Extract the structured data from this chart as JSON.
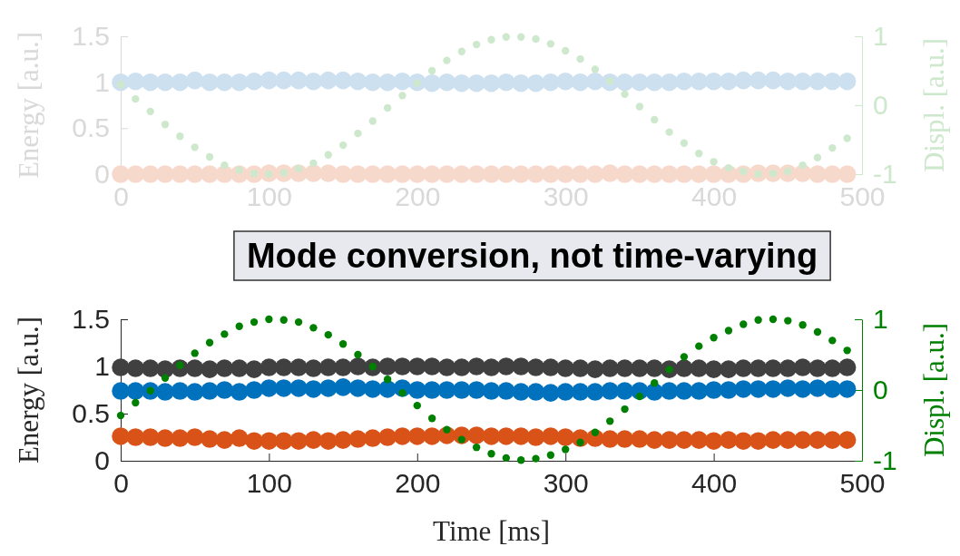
{
  "chart_data": [
    {
      "type": "scatter",
      "ylabel": "Energy [a.u.]",
      "y2label": "Displ. [a.u.]",
      "marker": "circle",
      "grid": false,
      "annotations": [
        "Mode conversion, not time-varying"
      ],
      "x": [
        0,
        10,
        20,
        30,
        40,
        50,
        60,
        70,
        80,
        90,
        100,
        110,
        120,
        130,
        140,
        150,
        160,
        170,
        180,
        190,
        200,
        210,
        220,
        230,
        240,
        250,
        260,
        270,
        280,
        290,
        300,
        310,
        320,
        330,
        340,
        350,
        360,
        370,
        380,
        390,
        400,
        410,
        420,
        430,
        440,
        450,
        460,
        470,
        480,
        490
      ],
      "xlim": [
        0,
        500
      ],
      "xticks": [
        0,
        100,
        200,
        300,
        400,
        500
      ],
      "ylim": [
        0,
        1.5
      ],
      "yticks": [
        0,
        0.5,
        1,
        1.5
      ],
      "y2lim": [
        -1,
        1
      ],
      "y2ticks": [
        -1,
        0,
        1
      ],
      "series": [
        {
          "color": "#cce0f0",
          "values": [
            1.0,
            1.01,
            1.0,
            1.0,
            1.0,
            1.02,
            1.0,
            1.0,
            1.0,
            1.01,
            1.02,
            1.02,
            1.02,
            1.01,
            1.02,
            1.02,
            1.01,
            1.0,
            1.0,
            1.01,
            1.0,
            0.99,
            1.0,
            0.99,
            0.99,
            0.99,
            1.0,
            0.99,
            0.99,
            1.0,
            1.01,
            1.0,
            1.01,
            1.0,
            1.0,
            1.0,
            1.0,
            1.0,
            1.01,
            1.01,
            1.01,
            1.01,
            1.02,
            1.02,
            1.02,
            1.01,
            1.01,
            1.01,
            1.01,
            1.01
          ]
        },
        {
          "color": "#f7d9cc",
          "values": [
            0,
            0,
            0,
            0,
            0,
            0,
            0,
            0,
            0,
            0,
            0.01,
            0.01,
            0.01,
            0.01,
            0.01,
            0,
            0,
            0,
            0,
            0,
            0,
            0,
            0,
            0,
            0,
            0,
            0,
            0,
            0,
            0,
            0,
            0,
            0,
            0.01,
            0,
            0,
            0,
            0,
            0,
            0,
            0,
            0,
            0,
            0.01,
            0.01,
            0.01,
            0.01,
            0,
            0,
            0
          ]
        },
        {
          "color": "#cde8cc",
          "axis": "y2",
          "values": [
            0.3,
            0.09,
            -0.09,
            -0.28,
            -0.45,
            -0.61,
            -0.75,
            -0.87,
            -0.94,
            -0.99,
            -1.0,
            -0.98,
            -0.92,
            -0.84,
            -0.72,
            -0.58,
            -0.41,
            -0.23,
            -0.04,
            0.14,
            0.32,
            0.5,
            0.65,
            0.78,
            0.88,
            0.95,
            0.99,
            0.99,
            0.96,
            0.89,
            0.79,
            0.67,
            0.52,
            0.35,
            0.16,
            -0.02,
            -0.21,
            -0.39,
            -0.55,
            -0.7,
            -0.82,
            -0.91,
            -0.96,
            -1.0,
            -0.99,
            -0.96,
            -0.87,
            -0.76,
            -0.62,
            -0.48
          ]
        }
      ]
    },
    {
      "type": "scatter",
      "xlabel": "Time [ms]",
      "ylabel": "Energy [a.u.]",
      "y2label": "Displ. [a.u.]",
      "marker": "circle",
      "grid": false,
      "x": [
        0,
        10,
        20,
        30,
        40,
        50,
        60,
        70,
        80,
        90,
        100,
        110,
        120,
        130,
        140,
        150,
        160,
        170,
        180,
        190,
        200,
        210,
        220,
        230,
        240,
        250,
        260,
        270,
        280,
        290,
        300,
        310,
        320,
        330,
        340,
        350,
        360,
        370,
        380,
        390,
        400,
        410,
        420,
        430,
        440,
        450,
        460,
        470,
        480,
        490
      ],
      "xlim": [
        0,
        500
      ],
      "xticks": [
        0,
        100,
        200,
        300,
        400,
        500
      ],
      "ylim": [
        0,
        1.5
      ],
      "yticks": [
        0,
        0.5,
        1,
        1.5
      ],
      "y2lim": [
        -1,
        1
      ],
      "y2ticks": [
        -1,
        0,
        1
      ],
      "series": [
        {
          "color": "#404040",
          "values": [
            0.99,
            0.98,
            0.98,
            0.97,
            0.98,
            0.98,
            0.97,
            0.98,
            0.98,
            0.97,
            0.99,
            0.99,
            0.99,
            0.98,
            0.99,
            0.99,
            1.0,
            0.99,
            1.0,
            1.0,
            1.0,
            1.0,
            0.99,
            0.99,
            1.0,
            0.99,
            1.0,
            1.0,
            0.99,
            0.99,
            0.98,
            0.98,
            0.97,
            0.98,
            0.98,
            0.98,
            0.98,
            0.97,
            0.98,
            0.98,
            0.97,
            0.97,
            0.98,
            0.98,
            0.98,
            0.98,
            0.99,
            0.98,
            0.98,
            0.99
          ]
        },
        {
          "color": "#0072bd",
          "values": [
            0.74,
            0.74,
            0.74,
            0.73,
            0.74,
            0.73,
            0.74,
            0.75,
            0.73,
            0.75,
            0.77,
            0.77,
            0.77,
            0.76,
            0.77,
            0.78,
            0.77,
            0.76,
            0.76,
            0.77,
            0.75,
            0.75,
            0.75,
            0.75,
            0.75,
            0.74,
            0.74,
            0.73,
            0.73,
            0.72,
            0.73,
            0.73,
            0.73,
            0.74,
            0.74,
            0.74,
            0.73,
            0.74,
            0.74,
            0.74,
            0.75,
            0.75,
            0.76,
            0.76,
            0.76,
            0.77,
            0.76,
            0.77,
            0.76,
            0.76
          ]
        },
        {
          "color": "#d95319",
          "values": [
            0.26,
            0.25,
            0.25,
            0.24,
            0.24,
            0.25,
            0.23,
            0.22,
            0.24,
            0.21,
            0.21,
            0.21,
            0.21,
            0.22,
            0.21,
            0.22,
            0.23,
            0.24,
            0.25,
            0.26,
            0.26,
            0.26,
            0.27,
            0.27,
            0.27,
            0.26,
            0.26,
            0.26,
            0.25,
            0.26,
            0.25,
            0.24,
            0.24,
            0.23,
            0.23,
            0.23,
            0.22,
            0.22,
            0.22,
            0.22,
            0.21,
            0.22,
            0.21,
            0.21,
            0.22,
            0.22,
            0.22,
            0.22,
            0.22,
            0.22
          ]
        },
        {
          "color": "#008000",
          "axis": "y2",
          "values": [
            -0.36,
            -0.18,
            -0.01,
            0.17,
            0.35,
            0.52,
            0.67,
            0.79,
            0.9,
            0.96,
            1.0,
            0.99,
            0.96,
            0.88,
            0.78,
            0.65,
            0.5,
            0.33,
            0.15,
            -0.04,
            -0.22,
            -0.4,
            -0.56,
            -0.7,
            -0.81,
            -0.9,
            -0.96,
            -0.99,
            -0.97,
            -0.92,
            -0.84,
            -0.74,
            -0.6,
            -0.44,
            -0.27,
            -0.09,
            0.1,
            0.29,
            0.47,
            0.62,
            0.74,
            0.84,
            0.93,
            0.99,
            1.0,
            0.98,
            0.92,
            0.82,
            0.7,
            0.56
          ]
        }
      ]
    }
  ]
}
